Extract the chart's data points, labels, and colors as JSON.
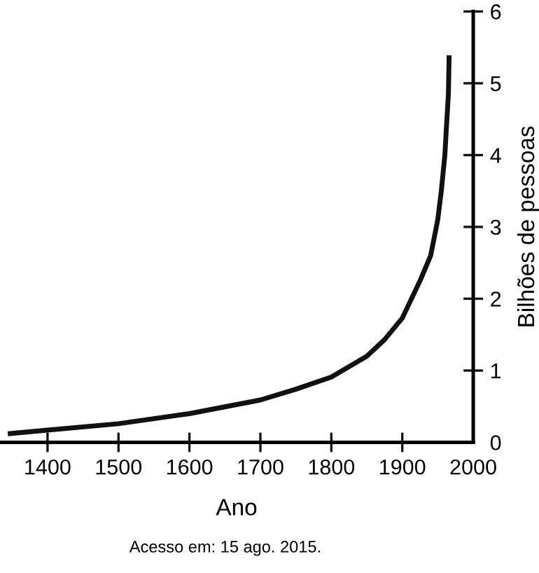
{
  "chart_data": {
    "type": "line",
    "xlabel": "Ano",
    "ylabel": "Bilhões de pessoas",
    "x": [
      1344,
      1400,
      1500,
      1600,
      1700,
      1750,
      1800,
      1850,
      1875,
      1900,
      1925,
      1940,
      1950,
      1955,
      1960,
      1962,
      1965,
      1966
    ],
    "series": [
      {
        "color": "#111111",
        "values": [
          0.12,
          0.17,
          0.26,
          0.4,
          0.59,
          0.74,
          0.91,
          1.2,
          1.43,
          1.73,
          2.25,
          2.6,
          3.1,
          3.5,
          4.0,
          4.35,
          4.85,
          5.39
        ]
      }
    ],
    "xlim": [
      1333,
      2000
    ],
    "ylim": [
      0,
      6
    ],
    "xticks": [
      1400,
      1500,
      1600,
      1700,
      1800,
      1900,
      2000
    ],
    "yticks": [
      0,
      1,
      2,
      3,
      4,
      5,
      6
    ],
    "grid": false,
    "legend": false,
    "marker": "none",
    "line_style": "solid",
    "annotations": [
      "Acesso em: 15 ago. 2015."
    ]
  }
}
